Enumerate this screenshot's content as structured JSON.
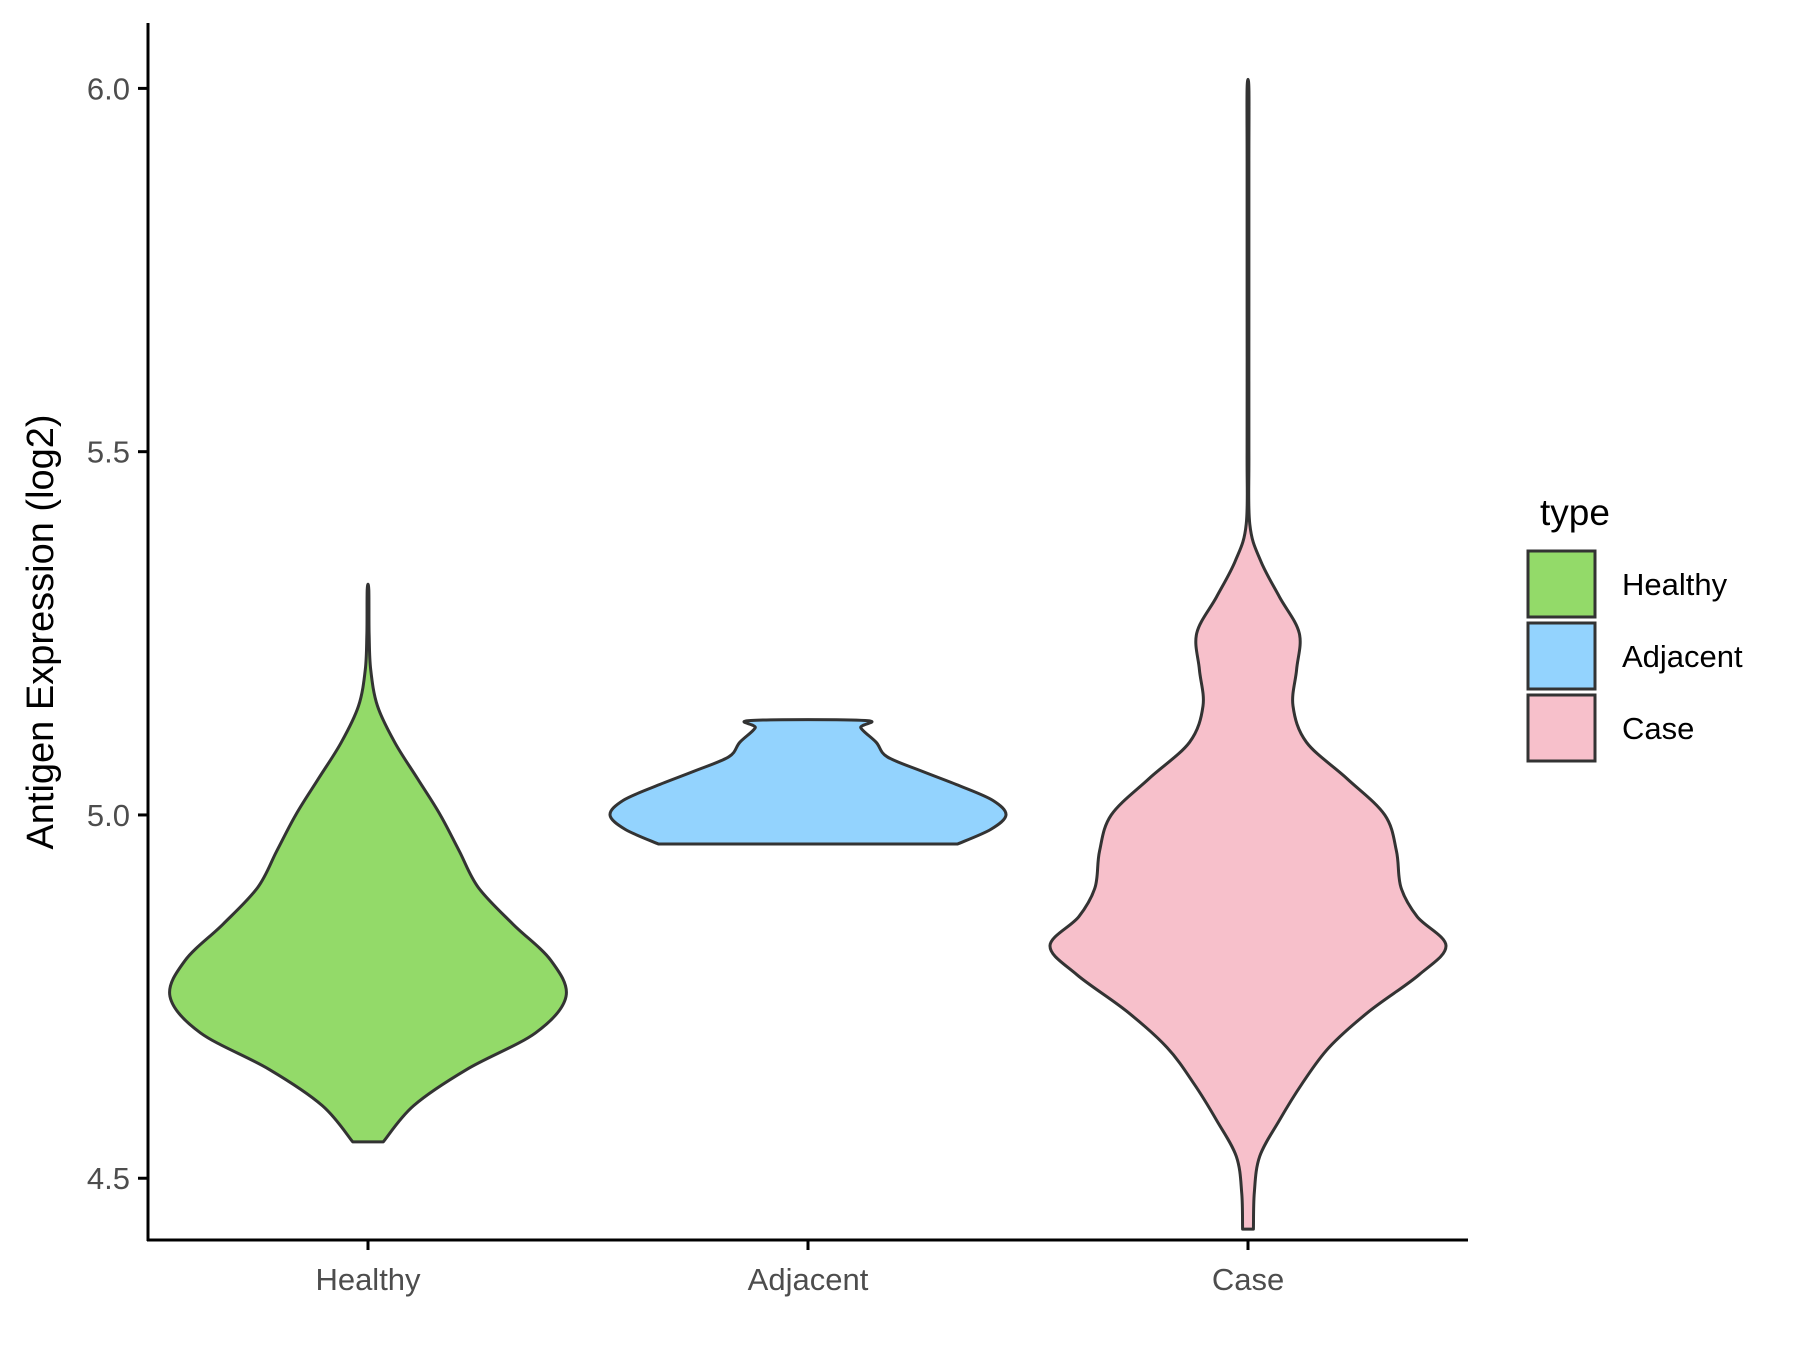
{
  "chart_data": {
    "type": "violin",
    "ylabel": "Antigen Expression (log2)",
    "xlabel": "",
    "ylim": [
      4.415,
      6.09
    ],
    "y_ticks": [
      {
        "value": 4.5,
        "label": "4.5"
      },
      {
        "value": 5.0,
        "label": "5.0"
      },
      {
        "value": 5.5,
        "label": "5.5"
      },
      {
        "value": 6.0,
        "label": "6.0"
      }
    ],
    "categories": [
      "Healthy",
      "Adjacent",
      "Case"
    ],
    "legend": {
      "title": "type",
      "position": "right",
      "entries": [
        {
          "label": "Healthy",
          "color": "#93DA69"
        },
        {
          "label": "Adjacent",
          "color": "#93D3FE"
        },
        {
          "label": "Case",
          "color": "#F7C0CB"
        }
      ]
    },
    "grid": false,
    "series": [
      {
        "category": "Healthy",
        "color": "#93DA69",
        "density": [
          [
            4.55,
            0.04
          ],
          [
            4.6,
            0.12
          ],
          [
            4.65,
            0.26
          ],
          [
            4.7,
            0.44
          ],
          [
            4.75,
            0.52
          ],
          [
            4.8,
            0.48
          ],
          [
            4.85,
            0.38
          ],
          [
            4.9,
            0.29
          ],
          [
            4.95,
            0.24
          ],
          [
            5.0,
            0.19
          ],
          [
            5.05,
            0.13
          ],
          [
            5.1,
            0.07
          ],
          [
            5.15,
            0.025
          ],
          [
            5.2,
            0.007
          ],
          [
            5.25,
            0.003
          ],
          [
            5.31,
            0.002
          ]
        ]
      },
      {
        "category": "Adjacent",
        "color": "#93D3FE",
        "density": [
          [
            4.96,
            0.68
          ],
          [
            4.98,
            0.83
          ],
          [
            5.0,
            0.9
          ],
          [
            5.02,
            0.84
          ],
          [
            5.04,
            0.69
          ],
          [
            5.06,
            0.52
          ],
          [
            5.08,
            0.36
          ],
          [
            5.1,
            0.31
          ],
          [
            5.12,
            0.24
          ],
          [
            5.13,
            0.26
          ]
        ]
      },
      {
        "category": "Case",
        "color": "#F7C0CB",
        "density": [
          [
            4.43,
            0.006
          ],
          [
            4.48,
            0.007
          ],
          [
            4.53,
            0.013
          ],
          [
            4.58,
            0.035
          ],
          [
            4.63,
            0.06
          ],
          [
            4.68,
            0.09
          ],
          [
            4.73,
            0.135
          ],
          [
            4.78,
            0.19
          ],
          [
            4.82,
            0.22
          ],
          [
            4.86,
            0.188
          ],
          [
            4.9,
            0.17
          ],
          [
            4.95,
            0.165
          ],
          [
            5.0,
            0.152
          ],
          [
            5.05,
            0.11
          ],
          [
            5.1,
            0.065
          ],
          [
            5.15,
            0.05
          ],
          [
            5.2,
            0.054
          ],
          [
            5.25,
            0.057
          ],
          [
            5.3,
            0.035
          ],
          [
            5.35,
            0.014
          ],
          [
            5.4,
            0.002
          ],
          [
            5.5,
            0.001
          ],
          [
            5.7,
            0.001
          ],
          [
            5.9,
            0.001
          ],
          [
            6.0,
            0.001
          ]
        ]
      }
    ]
  }
}
